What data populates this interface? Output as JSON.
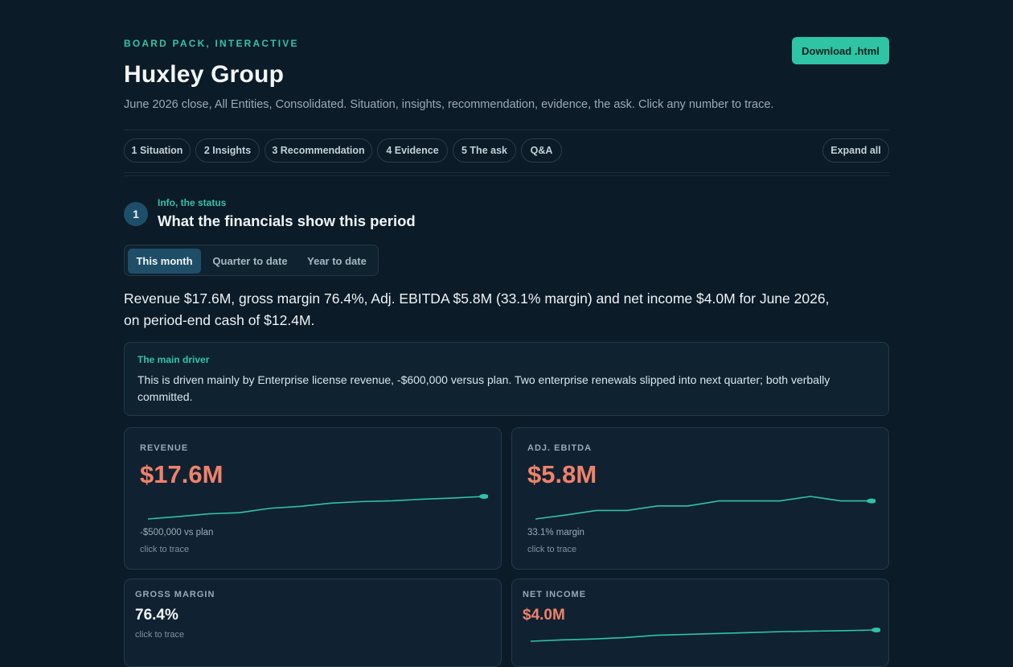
{
  "header": {
    "eyebrow": "BOARD PACK, INTERACTIVE",
    "title": "Huxley Group",
    "subtitle": "June 2026 close, All Entities, Consolidated. Situation, insights, recommendation, evidence, the ask. Click any number to trace.",
    "download_label": "Download .html"
  },
  "nav": {
    "tabs": [
      {
        "label": "1 Situation"
      },
      {
        "label": "2 Insights"
      },
      {
        "label": "3 Recommendation"
      },
      {
        "label": "4 Evidence"
      },
      {
        "label": "5 The ask"
      },
      {
        "label": "Q&A"
      }
    ],
    "expand_label": "Expand all"
  },
  "section": {
    "number": "1",
    "eyebrow": "Info, the status",
    "title": "What the financials show this period",
    "periods": [
      {
        "label": "This month",
        "active": true
      },
      {
        "label": "Quarter to date",
        "active": false
      },
      {
        "label": "Year to date",
        "active": false
      }
    ],
    "headline": "Revenue $17.6M, gross margin 76.4%, Adj. EBITDA $5.8M (33.1% margin) and net income $4.0M for June 2026, on period-end cash of $12.4M.",
    "driver": {
      "label": "The main driver",
      "text": "This is driven mainly by Enterprise license revenue, -$600,000 versus plan. Two enterprise renewals slipped into next quarter; both verbally committed."
    }
  },
  "kpis": [
    {
      "label": "REVENUE",
      "value": "$17.6M",
      "sub": "-$500,000 vs plan",
      "hint": "click to trace",
      "trend": [
        1.0,
        1.6,
        2.3,
        2.6,
        3.7,
        4.2,
        5.0,
        5.4,
        5.6,
        6.0,
        6.3,
        6.7
      ]
    },
    {
      "label": "ADJ. EBITDA",
      "value": "$5.8M",
      "sub": "33.1% margin",
      "hint": "click to trace",
      "trend": [
        1.0,
        1.8,
        2.7,
        2.7,
        3.6,
        3.6,
        4.6,
        4.6,
        4.6,
        5.5,
        4.6,
        4.6
      ]
    },
    {
      "label": "GROSS MARGIN",
      "value": "76.4%",
      "sub": "",
      "hint": "click to trace",
      "trend": []
    },
    {
      "label": "NET INCOME",
      "value": "$4.0M",
      "sub": "",
      "hint": "",
      "trend": [
        1.0,
        1.6,
        2.0,
        2.6,
        3.6,
        4.0,
        4.4,
        4.8,
        5.2,
        5.4,
        5.6,
        5.9
      ]
    }
  ],
  "colors": {
    "accent": "#2ec4a5",
    "value_highlight": "#f0826a",
    "value_neutral": "#f2f6f8",
    "background": "#0b1b27"
  }
}
